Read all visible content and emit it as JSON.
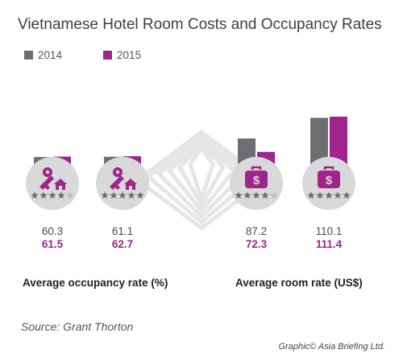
{
  "chart_data": {
    "type": "bar",
    "title": "Vietnamese Hotel Room Costs and Occupancy Rates",
    "series": [
      {
        "name": "2014",
        "color": "#6d6e71",
        "values": [
          60.3,
          61.1,
          87.2,
          110.1
        ]
      },
      {
        "name": "2015",
        "color": "#a0248c",
        "values": [
          61.5,
          62.7,
          72.3,
          111.4
        ]
      }
    ],
    "categories": [
      {
        "icon": "key-house-icon",
        "stars": 4
      },
      {
        "icon": "key-house-icon",
        "stars": 5
      },
      {
        "icon": "money-bag-icon",
        "stars": 4
      },
      {
        "icon": "money-bag-icon",
        "stars": 5
      }
    ],
    "groups": [
      {
        "label": "Average occupancy rate (%)",
        "category_indices": [
          0,
          1
        ]
      },
      {
        "label": "Average room rate (US$)",
        "category_indices": [
          2,
          3
        ]
      }
    ],
    "legend_position": "top-left",
    "grid": false
  },
  "value_labels": {
    "2014": [
      "60.3",
      "61.1",
      "87.2",
      "110.1"
    ],
    "2015": [
      "61.5",
      "62.7",
      "72.3",
      "111.4"
    ]
  },
  "source": "Source: Grant Thorton",
  "credit": "Graphic© Asia Briefing Ltd.",
  "colors": {
    "circle": "#d9d9da",
    "icon": "#a0248c",
    "star": "#6d6e71",
    "star_empty": "#bdbdbf",
    "watermark": "#e6e6e6"
  }
}
